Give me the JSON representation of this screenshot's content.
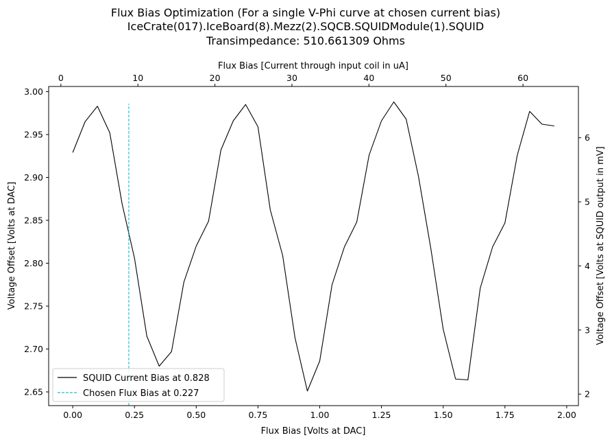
{
  "chart_data": {
    "type": "line",
    "title_lines": [
      "Flux Bias Optimization (For a single V-Phi curve at chosen current bias)",
      "IceCrate(017).IceBoard(8).Mezz(2).SQCB.SQUIDModule(1).SQUID",
      "Transimpedance: 510.661309 Ohms"
    ],
    "xlabel": "Flux Bias [Volts at DAC]",
    "ylabel": "Voltage Offset [Volts at DAC]",
    "x2label": "Flux Bias [Current through input coil in uA]",
    "y2label": "Voltage Offset [Volts at SQUID output in mV]",
    "xlim": [
      -0.0975,
      2.0475
    ],
    "ylim": [
      2.634,
      3.006
    ],
    "x2lim": [
      -1.588,
      67.2
    ],
    "y2lim": [
      1.82,
      6.8
    ],
    "xticks": [
      0.0,
      0.25,
      0.5,
      0.75,
      1.0,
      1.25,
      1.5,
      1.75,
      2.0
    ],
    "xtick_labels": [
      "0.00",
      "0.25",
      "0.50",
      "0.75",
      "1.00",
      "1.25",
      "1.50",
      "1.75",
      "2.00"
    ],
    "yticks": [
      2.65,
      2.7,
      2.75,
      2.8,
      2.85,
      2.9,
      2.95,
      3.0
    ],
    "ytick_labels": [
      "2.65",
      "2.70",
      "2.75",
      "2.80",
      "2.85",
      "2.90",
      "2.95",
      "3.00"
    ],
    "x2ticks": [
      0,
      10,
      20,
      30,
      40,
      50,
      60
    ],
    "x2tick_labels": [
      "0",
      "10",
      "20",
      "30",
      "40",
      "50",
      "60"
    ],
    "y2ticks": [
      2,
      3,
      4,
      5,
      6
    ],
    "y2tick_labels": [
      "2",
      "3",
      "4",
      "5",
      "6"
    ],
    "grid": false,
    "legend_position": "lower-left",
    "series": [
      {
        "name": "SQUID Current Bias at 0.828",
        "color": "#000000",
        "style": "solid",
        "x": [
          0.0,
          0.05,
          0.1,
          0.15,
          0.2,
          0.25,
          0.3,
          0.35,
          0.4,
          0.45,
          0.5,
          0.55,
          0.6,
          0.65,
          0.7,
          0.75,
          0.8,
          0.85,
          0.9,
          0.95,
          1.0,
          1.05,
          1.1,
          1.15,
          1.2,
          1.25,
          1.3,
          1.35,
          1.4,
          1.45,
          1.5,
          1.55,
          1.6,
          1.65,
          1.7,
          1.75,
          1.8,
          1.85,
          1.9,
          1.95
        ],
        "y": [
          2.929,
          2.965,
          2.983,
          2.952,
          2.869,
          2.806,
          2.715,
          2.68,
          2.697,
          2.778,
          2.82,
          2.849,
          2.932,
          2.966,
          2.985,
          2.959,
          2.862,
          2.809,
          2.713,
          2.651,
          2.686,
          2.775,
          2.819,
          2.848,
          2.926,
          2.966,
          2.988,
          2.968,
          2.901,
          2.817,
          2.723,
          2.665,
          2.664,
          2.771,
          2.819,
          2.847,
          2.926,
          2.977,
          2.962,
          2.96
        ]
      },
      {
        "name": "Chosen Flux Bias at 0.227",
        "color": "#17becf",
        "style": "dashed",
        "x": [
          0.227,
          0.227
        ],
        "y": [
          2.634,
          2.986
        ]
      }
    ]
  }
}
